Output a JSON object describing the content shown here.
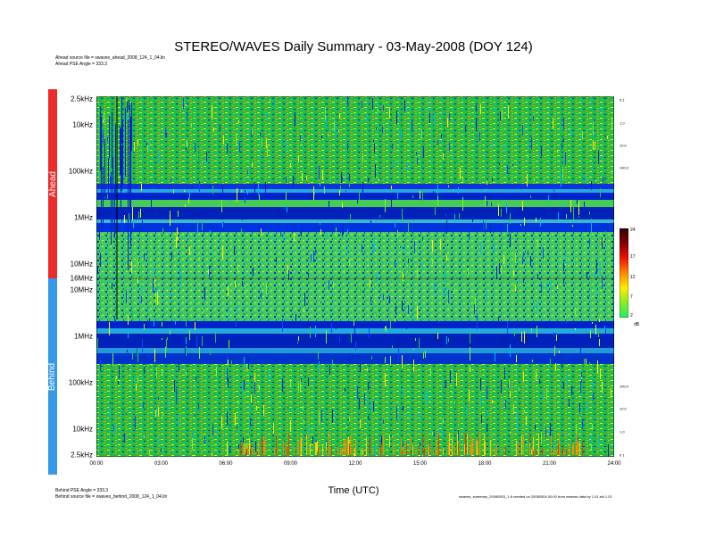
{
  "title": "STEREO/WAVES Daily Summary - 03-May-2008 (DOY 124)",
  "header_info": [
    "Ahead source file = swaves_ahead_2008_124_1_04.lin",
    "Ahead PSE Angle = 333.3"
  ],
  "footer_left": [
    "Behind PSE Angle = 333.3",
    "Behind source file = swaves_behind_2008_124_1_04.lin"
  ],
  "footer_right": "swaves_summary_20080503_1.8 created on 20080504 00:00 from swaves data by 1.01 sbi 1.01",
  "bands": [
    {
      "label": "Ahead",
      "color": "#ee2b2b"
    },
    {
      "label": "Behind",
      "color": "#3399e8"
    }
  ],
  "chart_data": {
    "type": "heatmap",
    "title": "STEREO/WAVES Daily Summary - 03-May-2008 (DOY 124)",
    "xlabel": "Time (UTC)",
    "x_ticks": [
      "00:00",
      "03:00",
      "06:00",
      "09:00",
      "12:00",
      "15:00",
      "18:00",
      "21:00",
      "24:00"
    ],
    "xlim": [
      "00:00",
      "24:00"
    ],
    "panels": [
      {
        "name": "Ahead",
        "y_ticks": [
          "2.5kHz",
          "10kHz",
          "100kHz",
          "1MHz",
          "10MHz",
          "16MHz"
        ],
        "y_ticks_right": [
          "0.1",
          "1.0",
          "10.0",
          "100.0"
        ],
        "ylim": [
          "2.5kHz",
          "16MHz"
        ],
        "scale": "log"
      },
      {
        "name": "Behind",
        "y_ticks": [
          "10MHz",
          "1MHz",
          "100kHz",
          "10kHz",
          "2.5kHz"
        ],
        "y_ticks_right": [
          "100.0",
          "10.0",
          "1.0",
          "0.1"
        ],
        "ylim": [
          "2.5kHz",
          "16MHz"
        ],
        "scale": "log"
      }
    ],
    "colorbar": {
      "unit": "dB",
      "ticks": [
        "24",
        "17",
        "12",
        "7",
        "2"
      ],
      "range": [
        2,
        24
      ],
      "colors": [
        "#22ee66",
        "#88ee22",
        "#ffee00",
        "#ff8800",
        "#ee1100",
        "#880000",
        "#330000"
      ]
    }
  }
}
